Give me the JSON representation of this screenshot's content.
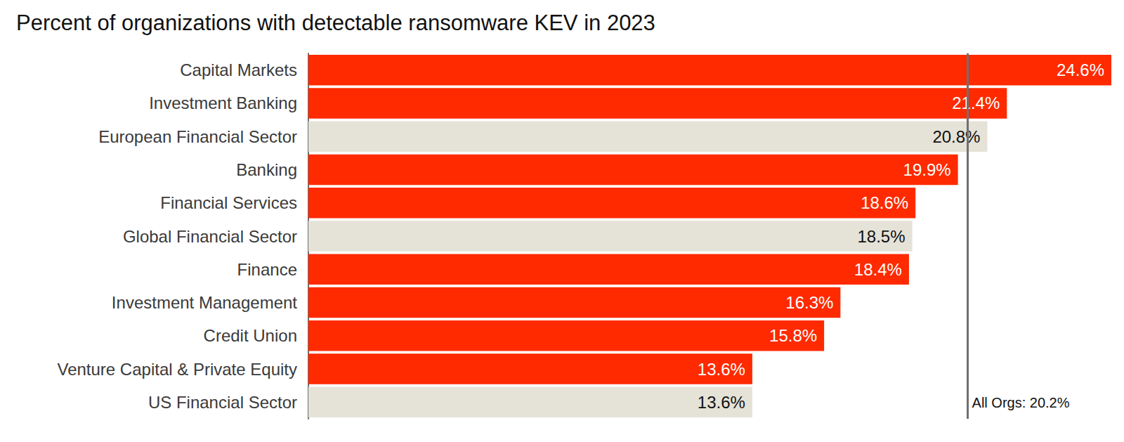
{
  "chart_data": {
    "type": "bar",
    "title": "Percent of organizations with detectable ransomware KEV in 2023",
    "orientation": "horizontal",
    "categories": [
      "Capital Markets",
      "Investment Banking",
      "European Financial Sector",
      "Banking",
      "Financial Services",
      "Global Financial Sector",
      "Finance",
      "Investment Management",
      "Credit Union",
      "Venture Capital & Private Equity",
      "US Financial Sector"
    ],
    "values": [
      24.6,
      21.4,
      20.8,
      19.9,
      18.6,
      18.5,
      18.4,
      16.3,
      15.8,
      13.6,
      13.6
    ],
    "value_labels": [
      "24.6%",
      "21.4%",
      "20.8%",
      "19.9%",
      "18.6%",
      "18.5%",
      "18.4%",
      "16.3%",
      "15.8%",
      "13.6%",
      "13.6%"
    ],
    "colors": [
      "#ff2a00",
      "#ff2a00",
      "#e5e2d8",
      "#ff2a00",
      "#ff2a00",
      "#e5e2d8",
      "#ff2a00",
      "#ff2a00",
      "#ff2a00",
      "#ff2a00",
      "#e5e2d8"
    ],
    "xlim": [
      0,
      24.6
    ],
    "reference_line": {
      "value": 20.2,
      "label": "All Orgs: 20.2%"
    },
    "data_labels": true,
    "tick_labels": "y",
    "grid": false
  }
}
